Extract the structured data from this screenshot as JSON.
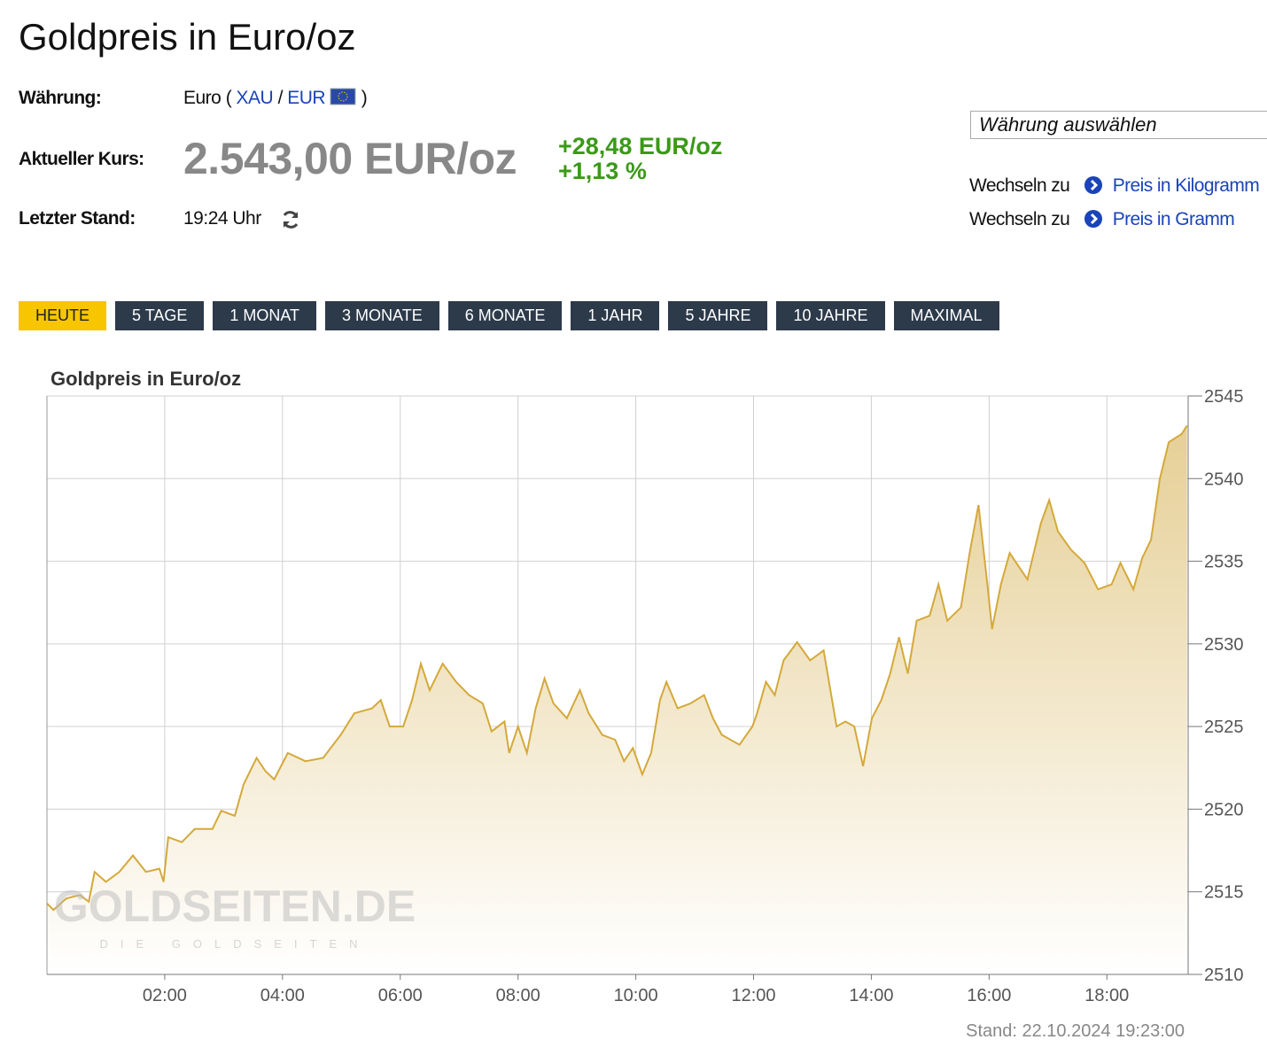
{
  "header": {
    "title": "Goldpreis in Euro/oz"
  },
  "info": {
    "currency_label": "Währung:",
    "currency_prefix": "Euro (",
    "xau": "XAU",
    "slash": "/",
    "eur": "EUR",
    "currency_suffix": ")",
    "price_label": "Aktueller Kurs:",
    "price": "2.543,00 EUR/oz",
    "change_abs": "+28,48 EUR/oz",
    "change_pct": "+1,13 %",
    "updated_label": "Letzter Stand:",
    "updated": "19:24 Uhr"
  },
  "sidebar": {
    "select": "Währung auswählen",
    "links": [
      {
        "prefix": "Wechseln zu",
        "label": "Preis in Kilogramm"
      },
      {
        "prefix": "Wechseln zu",
        "label": "Preis in Gramm"
      }
    ]
  },
  "tabs": {
    "items": [
      "HEUTE",
      "5 TAGE",
      "1 MONAT",
      "3 MONATE",
      "6 MONATE",
      "1 JAHR",
      "5 JAHRE",
      "10 JAHRE",
      "MAXIMAL"
    ],
    "active": 0
  },
  "chart_data": {
    "type": "area",
    "title": "Goldpreis in Euro/oz",
    "color": "#d4a93a",
    "grid": true,
    "x": [
      0,
      0.11,
      0.33,
      0.56,
      0.71,
      0.81,
      1.0,
      1.23,
      1.46,
      1.68,
      1.91,
      1.98,
      2.06,
      2.29,
      2.51,
      2.81,
      2.96,
      3.19,
      3.34,
      3.56,
      3.71,
      3.86,
      4.09,
      4.39,
      4.69,
      4.99,
      5.22,
      5.52,
      5.67,
      5.82,
      6.05,
      6.2,
      6.35,
      6.5,
      6.72,
      6.95,
      7.17,
      7.4,
      7.55,
      7.77,
      7.85,
      8.0,
      8.15,
      8.3,
      8.45,
      8.6,
      8.83,
      9.05,
      9.2,
      9.43,
      9.65,
      9.8,
      9.95,
      10.11,
      10.26,
      10.41,
      10.52,
      10.71,
      10.93,
      11.16,
      11.31,
      11.46,
      11.76,
      11.98,
      12.06,
      12.21,
      12.36,
      12.51,
      12.74,
      12.96,
      13.19,
      13.41,
      13.56,
      13.71,
      13.86,
      14.01,
      14.17,
      14.32,
      14.47,
      14.62,
      14.77,
      14.99,
      15.14,
      15.29,
      15.52,
      15.67,
      15.82,
      15.97,
      16.05,
      16.2,
      16.35,
      16.5,
      16.65,
      16.88,
      17.02,
      17.17,
      17.39,
      17.62,
      17.85,
      18.08,
      18.23,
      18.45,
      18.6,
      18.75,
      18.9,
      19.05,
      19.27,
      19.36
    ],
    "values": [
      2514.3,
      2513.9,
      2514.6,
      2514.8,
      2514.4,
      2516.2,
      2515.6,
      2516.2,
      2517.2,
      2516.2,
      2516.4,
      2515.6,
      2518.3,
      2518.0,
      2518.8,
      2518.8,
      2519.9,
      2519.6,
      2521.5,
      2523.1,
      2522.3,
      2521.8,
      2523.4,
      2522.9,
      2523.1,
      2524.5,
      2525.8,
      2526.1,
      2526.6,
      2525.0,
      2525.0,
      2526.6,
      2528.8,
      2527.2,
      2528.8,
      2527.7,
      2526.9,
      2526.4,
      2524.7,
      2525.3,
      2523.4,
      2525.0,
      2523.4,
      2526.1,
      2527.9,
      2526.4,
      2525.5,
      2527.2,
      2525.8,
      2524.5,
      2524.2,
      2522.9,
      2523.7,
      2522.1,
      2523.4,
      2526.6,
      2527.7,
      2526.1,
      2526.4,
      2526.9,
      2525.5,
      2524.5,
      2523.9,
      2525.0,
      2525.8,
      2527.7,
      2526.9,
      2529.0,
      2530.1,
      2529.0,
      2529.6,
      2525.0,
      2525.3,
      2525.0,
      2522.6,
      2525.5,
      2526.6,
      2528.2,
      2530.4,
      2528.2,
      2531.4,
      2531.7,
      2533.6,
      2531.4,
      2532.2,
      2535.5,
      2538.4,
      2533.6,
      2530.9,
      2533.6,
      2535.5,
      2534.7,
      2533.9,
      2537.3,
      2538.7,
      2536.8,
      2535.7,
      2534.9,
      2533.3,
      2533.6,
      2534.9,
      2533.3,
      2535.2,
      2536.3,
      2540.0,
      2542.2,
      2542.7,
      2543.2
    ],
    "xlim": [
      0,
      19.38
    ],
    "xticks": [
      {
        "value": 2,
        "label": "02:00"
      },
      {
        "value": 4,
        "label": "04:00"
      },
      {
        "value": 6,
        "label": "06:00"
      },
      {
        "value": 8,
        "label": "08:00"
      },
      {
        "value": 10,
        "label": "10:00"
      },
      {
        "value": 12,
        "label": "12:00"
      },
      {
        "value": 14,
        "label": "14:00"
      },
      {
        "value": 16,
        "label": "16:00"
      },
      {
        "value": 18,
        "label": "18:00"
      }
    ],
    "ylim": [
      2510,
      2545
    ],
    "yticks": [
      2510,
      2515,
      2520,
      2525,
      2530,
      2535,
      2540,
      2545
    ],
    "footer": "Stand: 22.10.2024 19:23:00",
    "watermark": "GOLDSEITEN.DE",
    "watermark_sub": "DIE GOLDSEITEN"
  }
}
